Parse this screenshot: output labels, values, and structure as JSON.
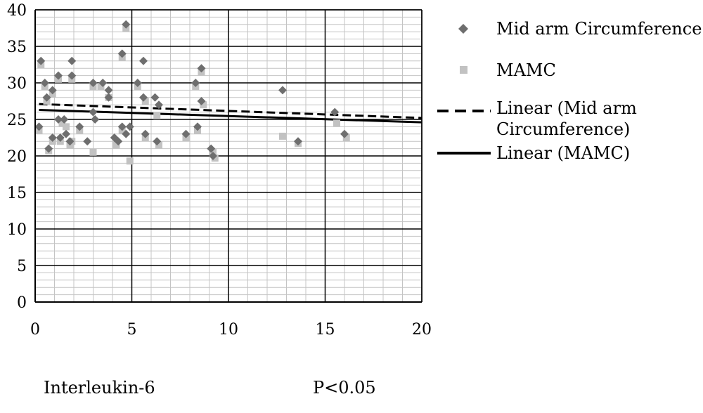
{
  "chart_data": {
    "type": "scatter",
    "xlim": [
      0,
      20
    ],
    "ylim": [
      0,
      40
    ],
    "x_ticks": [
      "0",
      "5",
      "10",
      "15",
      "20"
    ],
    "y_ticks": [
      "0",
      "5",
      "10",
      "15",
      "20",
      "25",
      "30",
      "35",
      "40"
    ],
    "grid": "major and minor",
    "legend_position": "right",
    "series": [
      {
        "name": "Mid arm Circumference",
        "marker": "diamond",
        "color": "#6e6e6e",
        "points": [
          [
            0.2,
            24
          ],
          [
            0.3,
            33
          ],
          [
            0.5,
            30
          ],
          [
            0.6,
            28
          ],
          [
            0.7,
            21
          ],
          [
            0.9,
            29
          ],
          [
            0.9,
            22.5
          ],
          [
            1.2,
            31
          ],
          [
            1.2,
            25
          ],
          [
            1.3,
            22.5
          ],
          [
            1.5,
            25
          ],
          [
            1.6,
            23
          ],
          [
            1.8,
            22
          ],
          [
            1.9,
            33
          ],
          [
            1.9,
            31
          ],
          [
            2.3,
            24
          ],
          [
            2.7,
            22
          ],
          [
            3.0,
            30
          ],
          [
            3.0,
            26
          ],
          [
            3.1,
            25
          ],
          [
            3.5,
            30
          ],
          [
            3.8,
            29
          ],
          [
            3.8,
            28
          ],
          [
            4.1,
            22.5
          ],
          [
            4.3,
            22
          ],
          [
            4.5,
            34
          ],
          [
            4.5,
            24
          ],
          [
            4.7,
            38
          ],
          [
            4.7,
            23
          ],
          [
            4.9,
            24
          ],
          [
            5.3,
            30
          ],
          [
            5.6,
            33
          ],
          [
            5.6,
            28
          ],
          [
            5.7,
            23
          ],
          [
            6.2,
            28
          ],
          [
            6.3,
            22
          ],
          [
            6.4,
            27
          ],
          [
            7.8,
            23
          ],
          [
            8.3,
            30
          ],
          [
            8.4,
            24
          ],
          [
            8.6,
            32
          ],
          [
            8.6,
            27.5
          ],
          [
            9.1,
            21
          ],
          [
            9.2,
            20
          ],
          [
            12.8,
            29
          ],
          [
            13.6,
            22
          ],
          [
            15.5,
            26
          ],
          [
            16.0,
            23
          ]
        ]
      },
      {
        "name": "MAMC",
        "marker": "square",
        "color": "#c2c2c2",
        "points": [
          [
            0.2,
            23.5
          ],
          [
            0.3,
            32.5
          ],
          [
            0.5,
            29.5
          ],
          [
            0.6,
            27.5
          ],
          [
            0.7,
            20.7
          ],
          [
            0.9,
            28.5
          ],
          [
            0.9,
            22
          ],
          [
            1.2,
            30.5
          ],
          [
            1.3,
            22
          ],
          [
            1.4,
            24.5
          ],
          [
            1.6,
            24
          ],
          [
            1.8,
            21.5
          ],
          [
            1.9,
            30.5
          ],
          [
            1.9,
            22
          ],
          [
            2.3,
            23.5
          ],
          [
            3.0,
            29.5
          ],
          [
            3.0,
            20.5
          ],
          [
            3.4,
            29.5
          ],
          [
            3.8,
            28
          ],
          [
            4.2,
            21.5
          ],
          [
            4.5,
            33.5
          ],
          [
            4.5,
            23.5
          ],
          [
            4.7,
            37.5
          ],
          [
            4.9,
            19.3
          ],
          [
            5.3,
            29.5
          ],
          [
            5.7,
            27.5
          ],
          [
            5.7,
            22.5
          ],
          [
            6.3,
            25.5
          ],
          [
            6.4,
            21.5
          ],
          [
            7.8,
            22.5
          ],
          [
            8.3,
            29.5
          ],
          [
            8.4,
            23.5
          ],
          [
            8.6,
            31.5
          ],
          [
            8.7,
            27
          ],
          [
            9.2,
            20.5
          ],
          [
            9.3,
            19.7
          ],
          [
            12.8,
            22.7
          ],
          [
            13.6,
            21.7
          ],
          [
            15.6,
            24.5
          ],
          [
            16.1,
            22.5
          ]
        ]
      }
    ],
    "trendlines": [
      {
        "name": "Linear (Mid arm Circumference)",
        "style": "dashed",
        "color": "#000000",
        "x": [
          0.2,
          20
        ],
        "y": [
          27.1,
          25.2
        ]
      },
      {
        "name": "Linear (MAMC)",
        "style": "solid",
        "color": "#000000",
        "x": [
          0.2,
          20
        ],
        "y": [
          26.3,
          24.6
        ]
      }
    ],
    "legend": [
      {
        "label": "Mid arm Circumference",
        "marker": "diamond"
      },
      {
        "label": "MAMC",
        "marker": "square"
      },
      {
        "label_lines": [
          "Linear (Mid arm",
          "Circumference)"
        ],
        "marker": "dashed-line"
      },
      {
        "label": "Linear (MAMC)",
        "marker": "solid-line"
      }
    ]
  },
  "captions": {
    "left": "Interleukin-6",
    "right": "P<0.05"
  }
}
